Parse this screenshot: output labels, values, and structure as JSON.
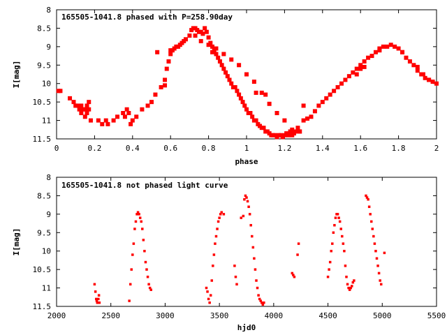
{
  "chart_data": [
    {
      "type": "scatter",
      "title": "165505-1041.8 phased with P=258.90day",
      "xlabel": "phase",
      "ylabel": "I[mag]",
      "xlim": [
        0,
        2
      ],
      "ylim": [
        11.5,
        8
      ],
      "y_inverted": true,
      "xticks": [
        "0",
        "0.2",
        "0.4",
        "0.6",
        "0.8",
        "1",
        "1.2",
        "1.4",
        "1.6",
        "1.8",
        "2"
      ],
      "yticks": [
        "8",
        "8.5",
        "9",
        "9.5",
        "10",
        "10.5",
        "11",
        "11.5"
      ],
      "marker": "filled-square",
      "color": "#ff0000",
      "grid": false,
      "series": [
        {
          "x": [
            0.01,
            0.02,
            0.07,
            0.09,
            0.1,
            0.11,
            0.12,
            0.13,
            0.13,
            0.14,
            0.15,
            0.15,
            0.16,
            0.16,
            0.17,
            0.17,
            0.18,
            0.22,
            0.24,
            0.26,
            0.27,
            0.3,
            0.32,
            0.35,
            0.36,
            0.37,
            0.38,
            0.39,
            0.4,
            0.42,
            0.45,
            0.48,
            0.5,
            0.52,
            0.55,
            0.57,
            0.58,
            0.59,
            0.6,
            0.61,
            0.62,
            0.63,
            0.64,
            0.65,
            0.66,
            0.67,
            0.68,
            0.7,
            0.71,
            0.72,
            0.73,
            0.74,
            0.75,
            0.76,
            0.77,
            0.78,
            0.79,
            0.8,
            0.81,
            0.82,
            0.83,
            0.84,
            0.85,
            0.86,
            0.87,
            0.88,
            0.89,
            0.9,
            0.91,
            0.92,
            0.93,
            0.94,
            0.95,
            0.96,
            0.97,
            0.98,
            0.99,
            1.0,
            1.01,
            1.02,
            1.03,
            1.04,
            1.05,
            1.06,
            1.07,
            1.08,
            1.09,
            1.1,
            1.11,
            1.12,
            1.13,
            1.14,
            1.15,
            1.16,
            1.17,
            1.18,
            1.19,
            1.2,
            1.21,
            1.22,
            1.23,
            1.24,
            1.25,
            1.26,
            1.27,
            1.28,
            1.3,
            1.32,
            1.34,
            1.36,
            1.38,
            1.4,
            1.42,
            1.44,
            1.46,
            1.48,
            1.5,
            1.52,
            1.54,
            1.56,
            1.58,
            1.6,
            1.62,
            1.64,
            1.66,
            1.68,
            1.7,
            1.72,
            1.74,
            1.76,
            1.78,
            1.8,
            1.82,
            1.84,
            1.86,
            1.88,
            1.9,
            1.92,
            1.94,
            1.96,
            1.98,
            2.0,
            0.73,
            0.76,
            0.8,
            0.84,
            0.88,
            0.92,
            0.96,
            1.0,
            1.04,
            1.08,
            1.12,
            1.16,
            1.2,
            1.24,
            1.28,
            0.57,
            0.6,
            0.53,
            0.82,
            1.05,
            1.1,
            1.3,
            1.58,
            1.6,
            1.62,
            1.7,
            1.82,
            1.9,
            1.93,
            1.96
          ],
          "y": [
            10.2,
            10.2,
            10.4,
            10.5,
            10.6,
            10.6,
            10.7,
            10.8,
            10.6,
            10.7,
            10.9,
            10.7,
            10.8,
            10.6,
            10.7,
            10.5,
            11.0,
            11.0,
            11.1,
            11.0,
            11.1,
            11.0,
            10.9,
            10.8,
            10.9,
            10.7,
            10.8,
            11.1,
            11.0,
            10.9,
            10.7,
            10.6,
            10.5,
            10.3,
            10.1,
            9.9,
            9.6,
            9.4,
            9.2,
            9.1,
            9.05,
            9.0,
            9.0,
            8.95,
            8.9,
            8.85,
            8.8,
            8.7,
            8.55,
            8.5,
            8.5,
            8.55,
            8.6,
            8.6,
            8.65,
            8.5,
            8.6,
            8.75,
            8.9,
            9.0,
            9.1,
            9.2,
            9.3,
            9.4,
            9.5,
            9.6,
            9.7,
            9.8,
            9.9,
            10.0,
            10.1,
            10.1,
            10.2,
            10.3,
            10.4,
            10.5,
            10.6,
            10.7,
            10.8,
            10.8,
            10.9,
            11.0,
            11.0,
            11.1,
            11.15,
            11.2,
            11.2,
            11.3,
            11.3,
            11.35,
            11.4,
            11.4,
            11.4,
            11.45,
            11.4,
            11.4,
            11.45,
            11.4,
            11.35,
            11.4,
            11.3,
            11.4,
            11.35,
            11.3,
            11.2,
            11.3,
            11.0,
            10.95,
            10.9,
            10.75,
            10.6,
            10.5,
            10.4,
            10.3,
            10.2,
            10.1,
            10.0,
            9.9,
            9.8,
            9.7,
            9.6,
            9.5,
            9.4,
            9.3,
            9.25,
            9.15,
            9.05,
            9.0,
            9.0,
            8.95,
            9.0,
            9.05,
            9.15,
            9.3,
            9.4,
            9.5,
            9.65,
            9.75,
            9.85,
            9.9,
            9.95,
            10.0,
            8.7,
            8.85,
            8.95,
            9.05,
            9.2,
            9.35,
            9.5,
            9.75,
            9.95,
            10.25,
            10.55,
            10.8,
            11.0,
            11.25,
            11.3,
            10.05,
            9.1,
            9.15,
            9.15,
            10.25,
            10.3,
            10.6,
            9.75,
            9.6,
            9.55,
            9.1,
            9.15,
            9.55,
            9.75,
            9.9
          ]
        }
      ]
    },
    {
      "type": "scatter",
      "title": "165505-1041.8 not phased light curve",
      "xlabel": "hjd0",
      "ylabel": "I[mag]",
      "xlim": [
        2000,
        5500
      ],
      "ylim": [
        11.5,
        8
      ],
      "y_inverted": true,
      "xticks": [
        "2000",
        "2500",
        "3000",
        "3500",
        "4000",
        "4500",
        "5000",
        "5500"
      ],
      "yticks": [
        "8",
        "8.5",
        "9",
        "9.5",
        "10",
        "10.5",
        "11",
        "11.5"
      ],
      "marker": "small-square",
      "color": "#ff0000",
      "grid": false,
      "series": [
        {
          "x": [
            2350,
            2358,
            2365,
            2370,
            2375,
            2380,
            2385,
            2390,
            2395,
            2670,
            2680,
            2690,
            2700,
            2710,
            2720,
            2730,
            2740,
            2750,
            2760,
            2770,
            2780,
            2790,
            2800,
            2810,
            2820,
            2830,
            2840,
            2850,
            2860,
            2870,
            3380,
            3390,
            3400,
            3410,
            3420,
            3430,
            3440,
            3450,
            3460,
            3470,
            3480,
            3490,
            3500,
            3510,
            3520,
            3540,
            3640,
            3650,
            3660,
            3700,
            3720,
            3730,
            3740,
            3750,
            3760,
            3770,
            3780,
            3790,
            3800,
            3810,
            3820,
            3830,
            3840,
            3850,
            3860,
            3870,
            3880,
            3890,
            3900,
            3910,
            4170,
            4180,
            4190,
            4220,
            4230,
            4500,
            4510,
            4520,
            4530,
            4540,
            4550,
            4560,
            4570,
            4580,
            4590,
            4600,
            4610,
            4620,
            4630,
            4640,
            4650,
            4660,
            4670,
            4680,
            4690,
            4700,
            4710,
            4720,
            4730,
            4740,
            4850,
            4860,
            4870,
            4880,
            4890,
            4900,
            4910,
            4920,
            4930,
            4940,
            4950,
            4960,
            4970,
            4980,
            4990,
            5020
          ],
          "y": [
            10.9,
            11.1,
            11.3,
            11.35,
            11.4,
            11.4,
            11.3,
            11.2,
            11.4,
            11.35,
            10.9,
            10.5,
            10.1,
            9.8,
            9.4,
            9.2,
            9.0,
            8.95,
            9.0,
            9.1,
            9.2,
            9.4,
            9.7,
            10.0,
            10.3,
            10.5,
            10.7,
            10.9,
            11.0,
            11.05,
            11.0,
            11.1,
            11.3,
            11.4,
            11.2,
            10.8,
            10.4,
            10.1,
            9.8,
            9.6,
            9.4,
            9.2,
            9.1,
            9.0,
            8.95,
            9.0,
            10.4,
            10.7,
            10.9,
            9.1,
            9.05,
            8.6,
            8.5,
            8.55,
            8.65,
            8.8,
            9.0,
            9.3,
            9.6,
            9.9,
            10.2,
            10.5,
            10.8,
            11.0,
            11.2,
            11.3,
            11.35,
            11.4,
            11.45,
            11.4,
            10.6,
            10.65,
            10.7,
            10.1,
            9.8,
            10.7,
            10.5,
            10.3,
            10.0,
            9.8,
            9.5,
            9.3,
            9.1,
            9.0,
            9.0,
            9.1,
            9.2,
            9.4,
            9.6,
            9.8,
            10.0,
            10.4,
            10.7,
            10.9,
            11.0,
            11.05,
            11.0,
            10.95,
            10.85,
            10.8,
            8.5,
            8.55,
            8.6,
            8.8,
            9.0,
            9.2,
            9.4,
            9.6,
            9.8,
            10.0,
            10.2,
            10.4,
            10.6,
            10.8,
            10.9,
            10.05
          ]
        }
      ]
    }
  ]
}
